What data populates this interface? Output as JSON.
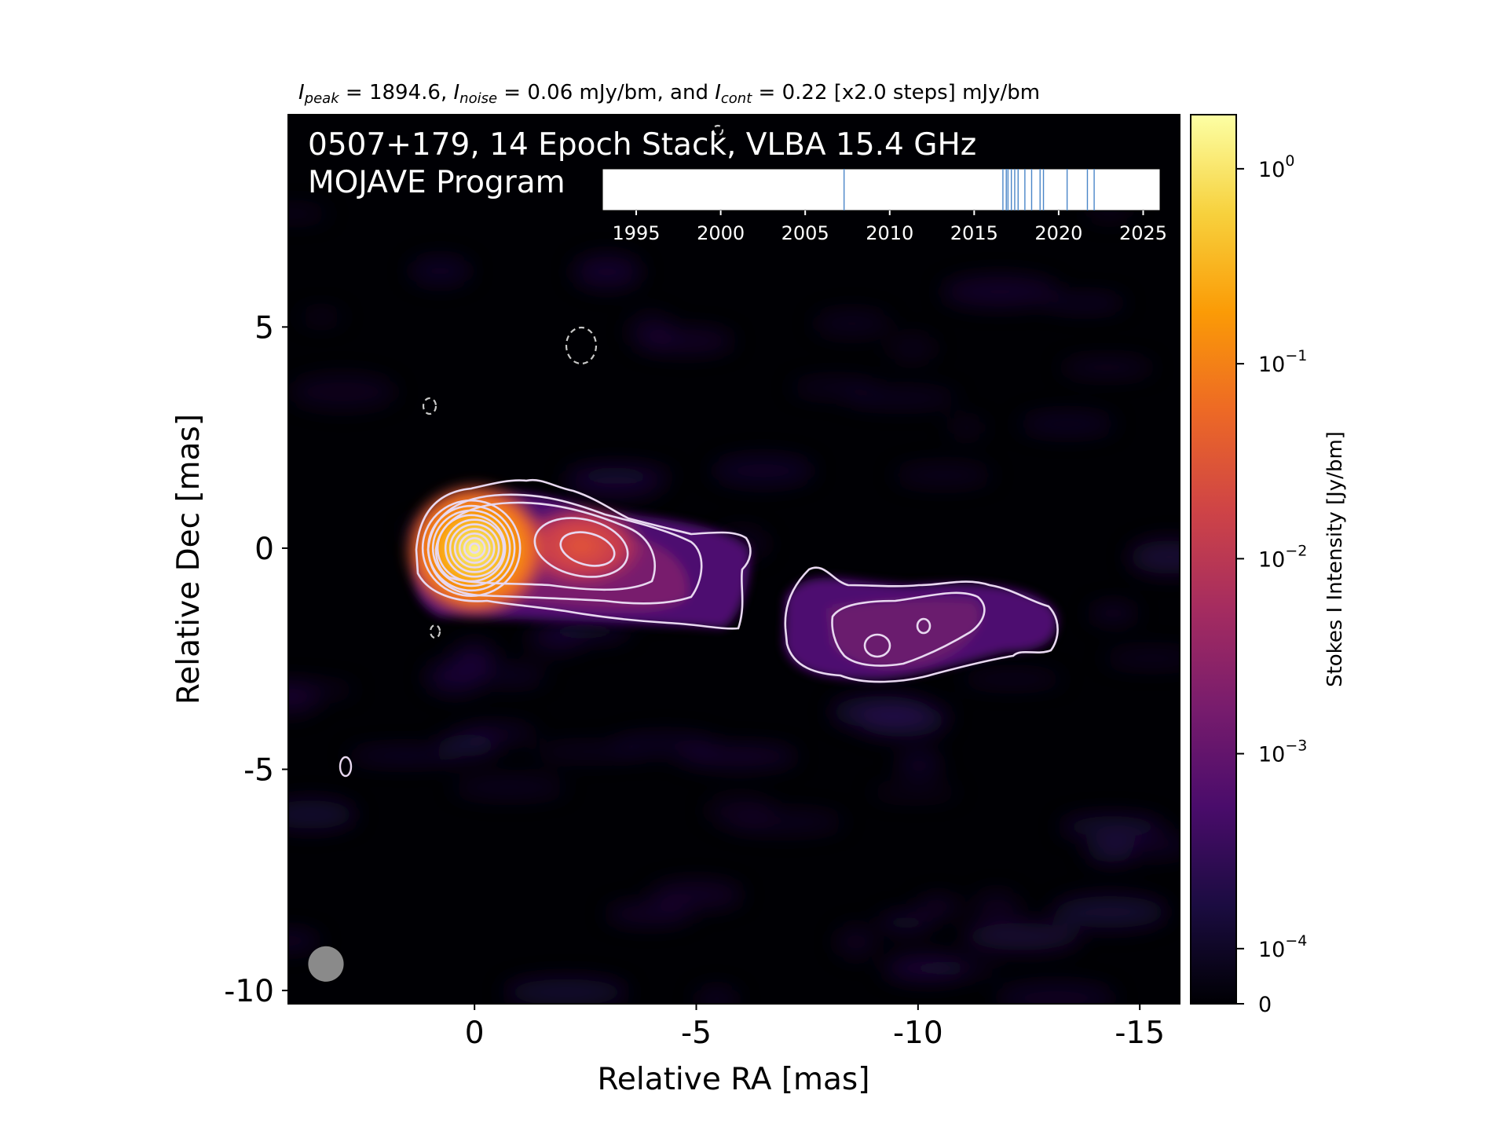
{
  "header": {
    "peak_value": "1894.6",
    "noise_value": "0.06",
    "cont_value": "0.22",
    "cont_steps": "[x2.0 steps]",
    "unit": "mJy/bm",
    "and_word": "and"
  },
  "overlay": {
    "line1": "0507+179, 14 Epoch Stack, VLBA 15.4 GHz",
    "line2": "MOJAVE Program"
  },
  "colors": {
    "map_background": "#000004",
    "contour": "#e8d8f0",
    "negative_contour": "#c8c8c8",
    "beam": "#8a8a8a",
    "epoch_line": "#4a86c8"
  },
  "chart_data": [
    {
      "type": "heatmap",
      "title": "",
      "xlabel": "Relative RA [mas]",
      "ylabel": "Relative Dec [mas]",
      "xlim": [
        4.2,
        -15.9
      ],
      "ylim": [
        -10.3,
        9.8
      ],
      "x_ticks": [
        0,
        -5,
        -10,
        -15
      ],
      "x_tick_labels": [
        "0",
        "-5",
        "-10",
        "-15"
      ],
      "y_ticks": [
        5,
        0,
        -5,
        -10
      ],
      "y_tick_labels": [
        "5",
        "0",
        "-5",
        "-10"
      ],
      "peak_position_mas": [
        0,
        0
      ],
      "components": [
        {
          "x": 0.0,
          "y": 0.0,
          "peak_jy_bm": 1.8946
        },
        {
          "x": -2.4,
          "y": 0.1,
          "peak_jy_bm": 0.03
        },
        {
          "x": -4.5,
          "y": -0.6,
          "peak_jy_bm": 0.003
        },
        {
          "x": -9.5,
          "y": -1.9,
          "peak_jy_bm": 0.0015
        }
      ],
      "contour_levels_mjy_bm": [
        0.22,
        0.44,
        0.88,
        1.76,
        3.52,
        7.04,
        14.08,
        28.16,
        56.32,
        112.64,
        225.28,
        450.56,
        901.12,
        1802.24
      ],
      "beam_mas": {
        "major": 0.8,
        "minor": 0.8,
        "x": 3.35,
        "y": -9.4
      }
    },
    {
      "type": "line",
      "title": "",
      "xlim": [
        1993,
        2026
      ],
      "x_ticks": [
        1995,
        2000,
        2005,
        2010,
        2015,
        2020,
        2025
      ],
      "x_tick_labels": [
        "1995",
        "2000",
        "2005",
        "2010",
        "2015",
        "2020",
        "2025"
      ],
      "epochs": [
        2007.3,
        2016.7,
        2016.9,
        2017.0,
        2017.2,
        2017.4,
        2017.6,
        2018.0,
        2018.4,
        2018.9,
        2019.1,
        2020.5,
        2021.7,
        2022.1
      ]
    },
    {
      "type": "heatmap",
      "title": "",
      "label": "Stokes I Intensity [Jy/bm]",
      "scale": "log",
      "range_jy_bm": [
        0,
        1.8946
      ],
      "ticks": [
        0,
        0.0001,
        0.001,
        0.01,
        0.1,
        1
      ],
      "tick_labels": [
        {
          "base": "0",
          "exp": ""
        },
        {
          "base": "10",
          "exp": "−4"
        },
        {
          "base": "10",
          "exp": "−3"
        },
        {
          "base": "10",
          "exp": "−2"
        },
        {
          "base": "10",
          "exp": "−1"
        },
        {
          "base": "10",
          "exp": "0"
        }
      ],
      "colormap": [
        "#000004",
        "#1b0c41",
        "#4a0c6b",
        "#781c6d",
        "#a52c60",
        "#cf4446",
        "#ed6925",
        "#fb9b06",
        "#f7d13d",
        "#fcffa4"
      ]
    }
  ]
}
